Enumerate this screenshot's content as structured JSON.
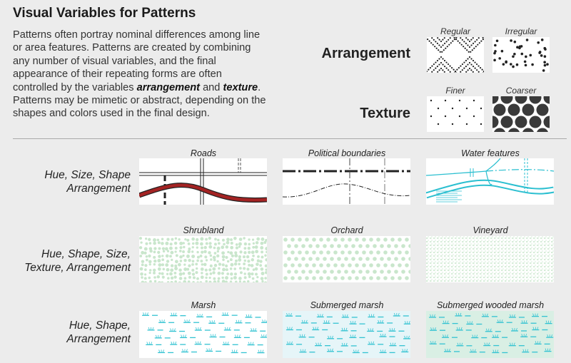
{
  "title": "Visual Variables for Patterns",
  "intro": {
    "p1": "Patterns often portray nominal differences among line or area features. Patterns are created by combining any number of visual variables, and the final appearance of their repeating forms are often controlled by the variables ",
    "em1": "arrangement",
    "p2": " and ",
    "em2": "texture",
    "p3": ". Patterns may be mimetic or abstract, depending on the shapes and colors used in the final design."
  },
  "variables": {
    "arrangement": {
      "label": "Arrangement",
      "left": "Regular",
      "right": "Irregular"
    },
    "texture": {
      "label": "Texture",
      "left": "Finer",
      "right": "Coarser"
    }
  },
  "rows": [
    {
      "label_l1": "Hue, Size, Shape",
      "label_l2": "Arrangement",
      "cells": [
        "Roads",
        "Political boundaries",
        "Water features"
      ]
    },
    {
      "label_l1": "Hue, Shape, Size,",
      "label_l2": "Texture, Arrangement",
      "cells": [
        "Shrubland",
        "Orchard",
        "Vineyard"
      ]
    },
    {
      "label_l1": "Hue, Shape,",
      "label_l2": "Arrangement",
      "cells": [
        "Marsh",
        "Submerged marsh",
        "Submerged wooded marsh"
      ]
    }
  ],
  "colors": {
    "road_red": "#a32323",
    "water_cyan": "#2bbfd0",
    "veg_green": "#c9e6cc",
    "marsh_cyan": "#34c3d2",
    "submerged_fill": "#e6f5f8",
    "wooded_fill": "#d9efe4"
  }
}
